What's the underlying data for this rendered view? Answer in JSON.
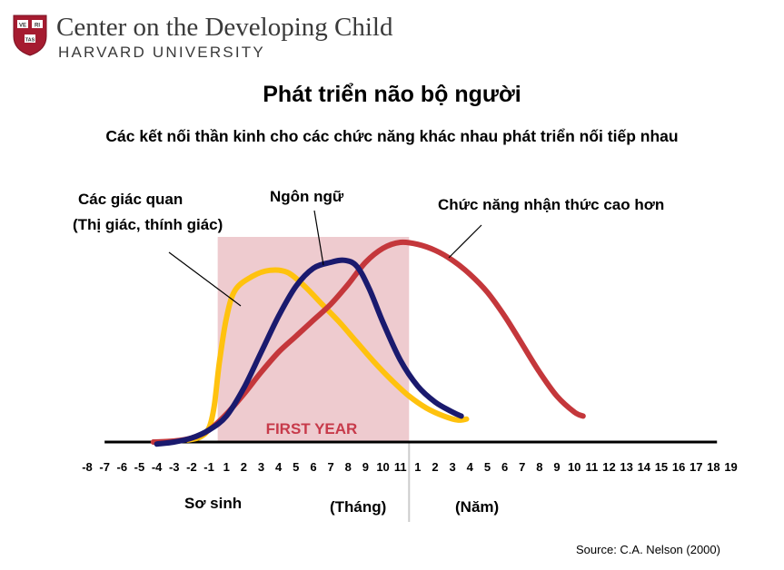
{
  "header": {
    "org_name": "Center on the Developing Child",
    "university": "HARVARD UNIVERSITY",
    "shield_text": [
      "VE",
      "RI",
      "TAS"
    ]
  },
  "title": "Phát triển não bộ người",
  "subtitle": "Các kết nối thần kinh cho các chức năng khác nhau phát triển nối tiếp nhau",
  "labels": {
    "senses_line1": "Các giác quan",
    "senses_line2": "(Thị giác, thính giác)",
    "language": "Ngôn ngữ",
    "higher_cognition": "Chức năng nhận thức cao hơn",
    "newborn": "Sơ sinh",
    "months": "(Tháng)",
    "years": "(Năm)"
  },
  "source": "Source: C.A. Nelson (2000)",
  "chart_data": {
    "type": "line",
    "title": "Phát triển não bộ người",
    "first_year_label": "FIRST YEAR",
    "tick_labels": [
      "-8",
      "-7",
      "-6",
      "-5",
      "-4",
      "-3",
      "-2",
      "-1",
      "1",
      "2",
      "3",
      "4",
      "5",
      "6",
      "7",
      "8",
      "9",
      "10",
      "11",
      "1",
      "2",
      "3",
      "4",
      "5",
      "6",
      "7",
      "8",
      "9",
      "10",
      "11",
      "12",
      "13",
      "14",
      "15",
      "16",
      "17",
      "18",
      "19"
    ],
    "x_index_range": [
      0,
      37
    ],
    "first_year_index_range": [
      7.5,
      18.5
    ],
    "y_range": [
      0,
      100
    ],
    "series": [
      {
        "name": "Các giác quan (Thị giác, thính giác)",
        "color": "#ffc20e",
        "points": [
          [
            5.8,
            1
          ],
          [
            6.5,
            2.5
          ],
          [
            7.0,
            7
          ],
          [
            7.3,
            18
          ],
          [
            7.6,
            40
          ],
          [
            8.0,
            62
          ],
          [
            8.5,
            76
          ],
          [
            9.5,
            83
          ],
          [
            10.5,
            86
          ],
          [
            11.5,
            85
          ],
          [
            12.5,
            78
          ],
          [
            13.5,
            69
          ],
          [
            14.5,
            60
          ],
          [
            15.5,
            50
          ],
          [
            16.5,
            40
          ],
          [
            17.5,
            31
          ],
          [
            18.5,
            23
          ],
          [
            19.5,
            17
          ],
          [
            20.5,
            13
          ],
          [
            21.3,
            11
          ],
          [
            21.8,
            11.5
          ]
        ]
      },
      {
        "name": "Ngôn ngữ",
        "color": "#1a1a6e",
        "points": [
          [
            4.0,
            -1
          ],
          [
            5.0,
            0
          ],
          [
            6.0,
            2
          ],
          [
            7.0,
            6
          ],
          [
            8.0,
            13
          ],
          [
            9.0,
            27
          ],
          [
            10.0,
            45
          ],
          [
            11.0,
            63
          ],
          [
            12.0,
            78
          ],
          [
            13.0,
            87
          ],
          [
            14.0,
            90
          ],
          [
            14.8,
            91
          ],
          [
            15.5,
            88
          ],
          [
            16.2,
            77
          ],
          [
            17.0,
            60
          ],
          [
            18.0,
            41
          ],
          [
            19.0,
            28
          ],
          [
            20.0,
            20
          ],
          [
            21.0,
            15
          ],
          [
            21.5,
            13
          ]
        ]
      },
      {
        "name": "Chức năng nhận thức cao hơn",
        "color": "#c4373b",
        "points": [
          [
            3.8,
            0
          ],
          [
            5.0,
            0.5
          ],
          [
            6.0,
            2
          ],
          [
            7.0,
            6
          ],
          [
            8.0,
            14
          ],
          [
            9.0,
            24
          ],
          [
            10.0,
            35
          ],
          [
            11.0,
            45
          ],
          [
            12.0,
            53
          ],
          [
            13.0,
            61
          ],
          [
            14.0,
            69
          ],
          [
            15.0,
            79
          ],
          [
            16.0,
            90
          ],
          [
            17.0,
            97
          ],
          [
            18.0,
            100
          ],
          [
            19.0,
            99
          ],
          [
            20.0,
            96
          ],
          [
            21.0,
            91
          ],
          [
            22.0,
            84
          ],
          [
            23.0,
            75
          ],
          [
            24.0,
            63
          ],
          [
            25.0,
            49
          ],
          [
            26.0,
            35
          ],
          [
            27.0,
            23
          ],
          [
            28.0,
            15
          ],
          [
            28.5,
            13
          ]
        ]
      }
    ]
  }
}
